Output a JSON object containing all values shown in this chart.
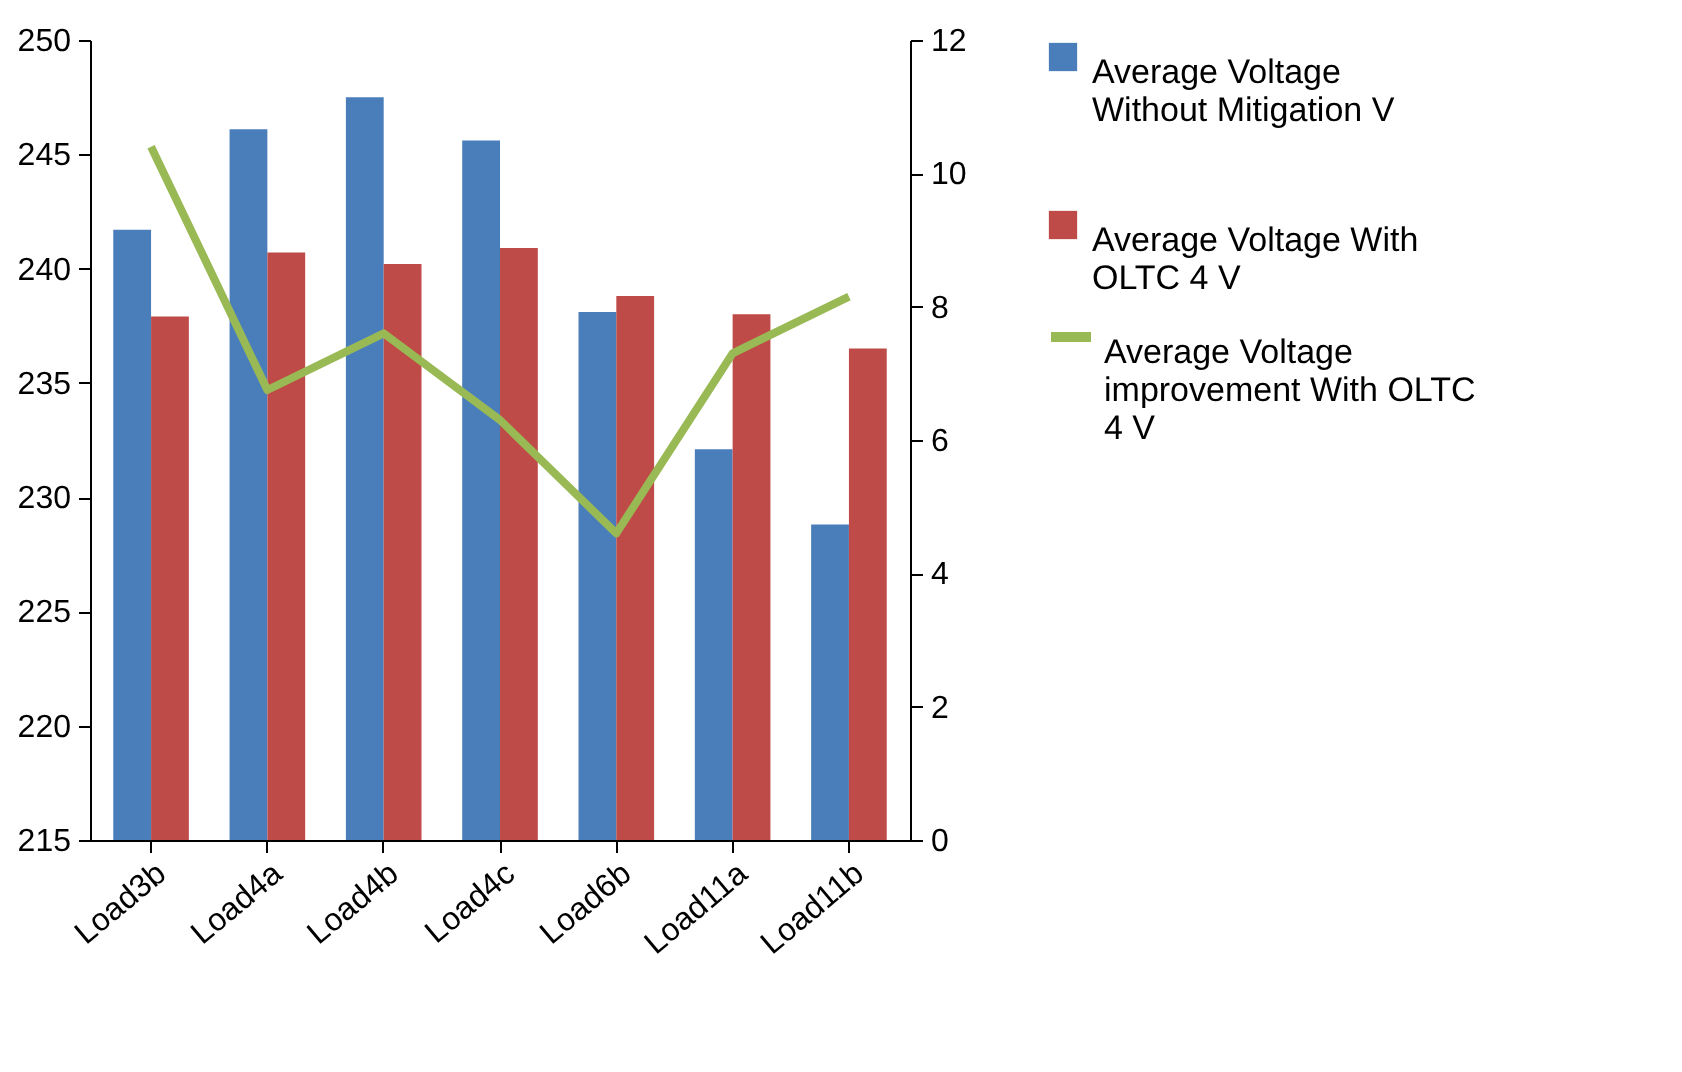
{
  "chart_data": {
    "type": "bar",
    "categories": [
      "Load3b",
      "Load4a",
      "Load4b",
      "Load4c",
      "Load6b",
      "Load11a",
      "Load11b"
    ],
    "series": [
      {
        "name": "Average Voltage Without Mitigation V",
        "color": "#4a7ebb",
        "values": [
          241.7,
          246.1,
          247.5,
          245.6,
          238.1,
          232.1,
          228.8
        ]
      },
      {
        "name": "Average Voltage With OLTC 4 V",
        "color": "#be4b48",
        "values": [
          237.9,
          240.7,
          240.2,
          240.9,
          238.8,
          238.0,
          236.5
        ]
      },
      {
        "name": "Average Voltage improvement With OLTC 4 V",
        "color": "#98b954",
        "type": "line",
        "axis": "y2",
        "values": [
          10.4,
          6.75,
          7.6,
          6.3,
          4.6,
          7.3,
          8.15
        ]
      }
    ],
    "ylim": [
      215,
      250
    ],
    "yticks": [
      215,
      220,
      225,
      230,
      235,
      240,
      245,
      250
    ],
    "y2lim": [
      0,
      12
    ],
    "y2ticks": [
      0,
      2,
      4,
      6,
      8,
      10,
      12
    ],
    "legend": "right"
  }
}
